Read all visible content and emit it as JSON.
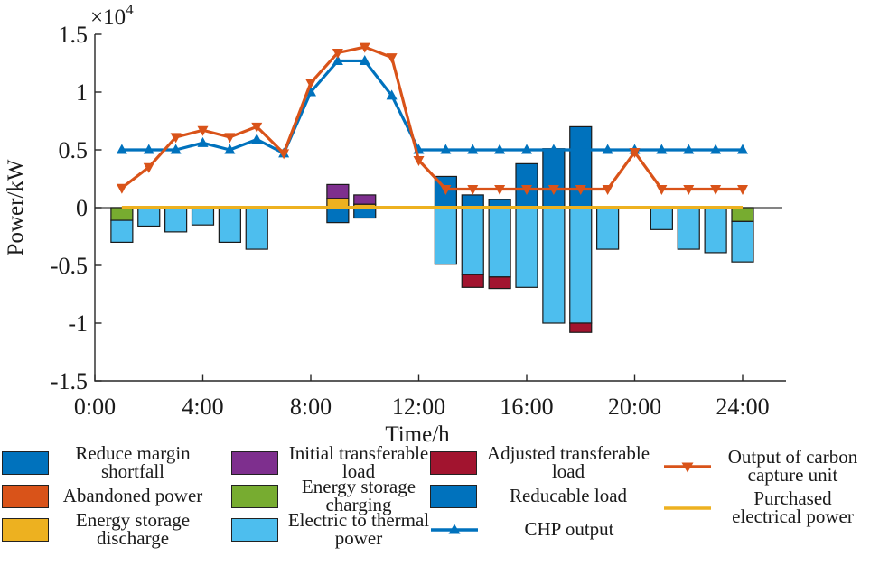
{
  "figure": {
    "ylabel": "Power/kW",
    "xlabel": "Time/h",
    "exponent": {
      "mantissa": "×10",
      "exp": "4"
    }
  },
  "series_colors": {
    "Reduce margin shortfall": "#0072BD",
    "Abandoned power": "#D95319",
    "Energy storage discharge": "#EDB120",
    "Initial transferable load": "#7E2F8E",
    "Energy storage charging": "#77AC30",
    "Electric to thermal power": "#4DBEEE",
    "Adjusted transferable load": "#A2142F",
    "Reducable load": "#0072BD",
    "CHP output": "#0072BD",
    "Output of carbon capture unit": "#D95319",
    "Purchased electrical power": "#EDB120",
    "axis": "#262626",
    "zero_line": "#3a3a3a"
  },
  "chart_data": {
    "type": "composite: stacked bars + lines",
    "title": "",
    "xlabel": "Time/h",
    "ylabel": "Power/kW",
    "y_unit_exponent": "×10⁴",
    "xlim": [
      0,
      25.6
    ],
    "ylim": [
      -1.5,
      1.5
    ],
    "grid": false,
    "y_ticks": [
      {
        "v": 1.5,
        "label": "1.5"
      },
      {
        "v": 1,
        "label": "1"
      },
      {
        "v": 0.5,
        "label": "0.5"
      },
      {
        "v": 0,
        "label": "0"
      },
      {
        "v": -0.5,
        "label": "-0.5"
      },
      {
        "v": -1,
        "label": "-1"
      },
      {
        "v": -1.5,
        "label": "-1.5"
      }
    ],
    "x_ticks": [
      {
        "h": 0,
        "label": "0:00"
      },
      {
        "h": 4,
        "label": "4:00"
      },
      {
        "h": 8,
        "label": "8:00"
      },
      {
        "h": 12,
        "label": "12:00"
      },
      {
        "h": 16,
        "label": "16:00"
      },
      {
        "h": 20,
        "label": "20:00"
      },
      {
        "h": 24,
        "label": "24:00"
      }
    ],
    "hours": [
      1,
      2,
      3,
      4,
      5,
      6,
      7,
      8,
      9,
      10,
      11,
      12,
      13,
      14,
      15,
      16,
      17,
      18,
      19,
      20,
      21,
      22,
      23,
      24
    ],
    "series": [
      {
        "name": "Purchased electrical power",
        "type": "line",
        "marker": "none",
        "values": [
          0,
          0,
          0,
          0,
          0,
          0,
          0,
          0,
          0,
          0,
          0,
          0,
          0,
          0,
          0,
          0,
          0,
          0,
          0,
          0,
          0,
          0,
          0,
          0
        ]
      },
      {
        "name": "CHP output",
        "type": "line",
        "marker": "triangle-up",
        "values": [
          0.5,
          0.5,
          0.5,
          0.56,
          0.5,
          0.59,
          0.47,
          1.0,
          1.27,
          1.27,
          0.97,
          0.5,
          0.5,
          0.5,
          0.5,
          0.5,
          0.5,
          0.5,
          0.5,
          0.5,
          0.5,
          0.5,
          0.5,
          0.5
        ]
      },
      {
        "name": "Output of carbon capture unit",
        "type": "line",
        "marker": "triangle-down",
        "values": [
          0.17,
          0.35,
          0.61,
          0.67,
          0.61,
          0.7,
          0.47,
          1.08,
          1.34,
          1.39,
          1.3,
          0.41,
          0.16,
          0.16,
          0.16,
          0.16,
          0.16,
          0.16,
          0.16,
          0.48,
          0.16,
          0.16,
          0.16,
          0.16
        ]
      }
    ],
    "bars": [
      {
        "hour": 1,
        "segments": [
          {
            "series": "Energy storage charging",
            "value": -0.11
          },
          {
            "series": "Electric to thermal power",
            "value": -0.19
          }
        ]
      },
      {
        "hour": 2,
        "segments": [
          {
            "series": "Electric to thermal power",
            "value": -0.16
          }
        ]
      },
      {
        "hour": 3,
        "segments": [
          {
            "series": "Electric to thermal power",
            "value": -0.21
          }
        ]
      },
      {
        "hour": 4,
        "segments": [
          {
            "series": "Electric to thermal power",
            "value": -0.15
          }
        ]
      },
      {
        "hour": 5,
        "segments": [
          {
            "series": "Electric to thermal power",
            "value": -0.3
          }
        ]
      },
      {
        "hour": 6,
        "segments": [
          {
            "series": "Electric to thermal power",
            "value": -0.36
          }
        ]
      },
      {
        "hour": 9,
        "segments": [
          {
            "series": "Energy storage discharge",
            "value": 0.08
          },
          {
            "series": "Initial transferable load",
            "value": 0.12
          },
          {
            "series": "Reduce margin shortfall",
            "value": -0.13
          }
        ]
      },
      {
        "hour": 10,
        "segments": [
          {
            "series": "Energy storage discharge",
            "value": 0.03
          },
          {
            "series": "Initial transferable load",
            "value": 0.08
          },
          {
            "series": "Reduce margin shortfall",
            "value": -0.09
          }
        ]
      },
      {
        "hour": 13,
        "segments": [
          {
            "series": "Reducable load",
            "value": 0.27
          },
          {
            "series": "Electric to thermal power",
            "value": -0.49
          }
        ]
      },
      {
        "hour": 14,
        "segments": [
          {
            "series": "Reducable load",
            "value": 0.11
          },
          {
            "series": "Electric to thermal power",
            "value": -0.58
          },
          {
            "series": "Adjusted transferable load",
            "value": -0.11
          }
        ]
      },
      {
        "hour": 15,
        "segments": [
          {
            "series": "Reducable load",
            "value": 0.07
          },
          {
            "series": "Electric to thermal power",
            "value": -0.6
          },
          {
            "series": "Adjusted transferable load",
            "value": -0.1
          }
        ]
      },
      {
        "hour": 16,
        "segments": [
          {
            "series": "Reducable load",
            "value": 0.38
          },
          {
            "series": "Electric to thermal power",
            "value": -0.69
          }
        ]
      },
      {
        "hour": 17,
        "segments": [
          {
            "series": "Reducable load",
            "value": 0.51
          },
          {
            "series": "Electric to thermal power",
            "value": -1.0
          }
        ]
      },
      {
        "hour": 18,
        "segments": [
          {
            "series": "Reducable load",
            "value": 0.7
          },
          {
            "series": "Electric to thermal power",
            "value": -1.0
          },
          {
            "series": "Adjusted transferable load",
            "value": -0.08
          }
        ]
      },
      {
        "hour": 19,
        "segments": [
          {
            "series": "Electric to thermal power",
            "value": -0.36
          }
        ]
      },
      {
        "hour": 21,
        "segments": [
          {
            "series": "Electric to thermal power",
            "value": -0.19
          }
        ]
      },
      {
        "hour": 22,
        "segments": [
          {
            "series": "Electric to thermal power",
            "value": -0.36
          }
        ]
      },
      {
        "hour": 23,
        "segments": [
          {
            "series": "Electric to thermal power",
            "value": -0.39
          }
        ]
      },
      {
        "hour": 24,
        "segments": [
          {
            "series": "Energy storage charging",
            "value": -0.12
          },
          {
            "series": "Electric to thermal power",
            "value": -0.35
          }
        ]
      }
    ],
    "legend_position": "below, 4 columns"
  },
  "legend": {
    "items": [
      {
        "label": "Reduce margin shortfall",
        "swatch": "rect",
        "marker": "none",
        "color": "#0072BD"
      },
      {
        "label": "Abandoned power",
        "swatch": "rect",
        "marker": "none",
        "color": "#D95319"
      },
      {
        "label": "Energy storage discharge",
        "swatch": "rect",
        "marker": "none",
        "color": "#EDB120"
      },
      {
        "label": "Initial transferable load",
        "swatch": "rect",
        "marker": "none",
        "color": "#7E2F8E"
      },
      {
        "label": "Energy storage charging",
        "swatch": "rect",
        "marker": "none",
        "color": "#77AC30"
      },
      {
        "label": "Electric to thermal power",
        "swatch": "rect",
        "marker": "none",
        "color": "#4DBEEE"
      },
      {
        "label": "Adjusted transferable load",
        "swatch": "rect",
        "marker": "none",
        "color": "#A2142F"
      },
      {
        "label": "Reducable load",
        "swatch": "rect",
        "marker": "none",
        "color": "#0072BD"
      },
      {
        "label": "CHP output",
        "swatch": "line",
        "marker": "triangle-up",
        "color": "#0072BD"
      },
      {
        "label": "Output of carbon capture unit",
        "swatch": "line",
        "marker": "triangle-down",
        "color": "#D95319"
      },
      {
        "label": "Purchased electrical power",
        "swatch": "line",
        "marker": "none",
        "color": "#EDB120"
      }
    ]
  }
}
